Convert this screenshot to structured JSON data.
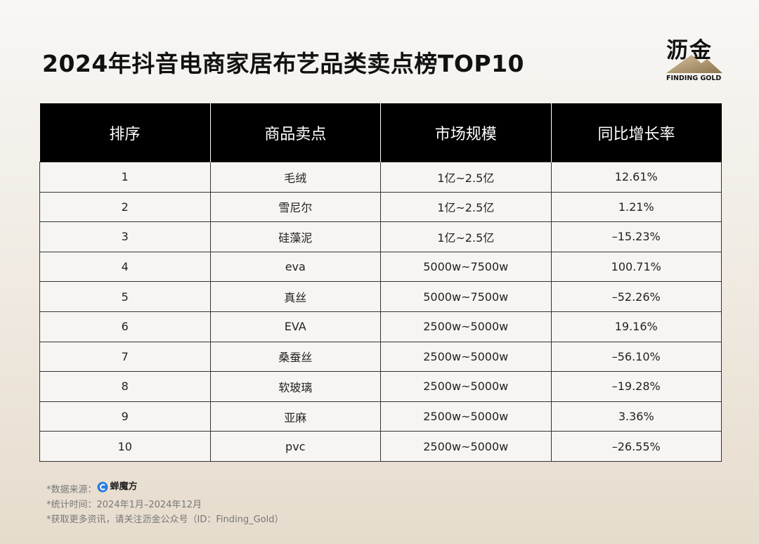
{
  "header": {
    "title": "2024年抖音电商家居布艺品类卖点榜TOP10",
    "logo": {
      "name": "沥金",
      "tagline": "FINDING GOLD"
    }
  },
  "table": {
    "columns": [
      "排序",
      "商品卖点",
      "市场规模",
      "同比增长率"
    ],
    "rows": [
      [
        "1",
        "毛绒",
        "1亿~2.5亿",
        "12.61%"
      ],
      [
        "2",
        "雪尼尔",
        "1亿~2.5亿",
        "1.21%"
      ],
      [
        "3",
        "硅藻泥",
        "1亿~2.5亿",
        "–15.23%"
      ],
      [
        "4",
        "eva",
        "5000w~7500w",
        "100.71%"
      ],
      [
        "5",
        "真丝",
        "5000w~7500w",
        "–52.26%"
      ],
      [
        "6",
        "EVA",
        "2500w~5000w",
        "19.16%"
      ],
      [
        "7",
        "桑蚕丝",
        "2500w~5000w",
        "–56.10%"
      ],
      [
        "8",
        "软玻璃",
        "2500w~5000w",
        "–19.28%"
      ],
      [
        "9",
        "亚麻",
        "2500w~5000w",
        "3.36%"
      ],
      [
        "10",
        "pvc",
        "2500w~5000w",
        "–26.55%"
      ]
    ]
  },
  "footer": {
    "source_label": "*数据来源：",
    "source_brand": "蝉魔方",
    "period": "*统计时间：2024年1月–2024年12月",
    "contact": "*获取更多资讯，请关注沥金公众号（ID：Finding_Gold）"
  }
}
